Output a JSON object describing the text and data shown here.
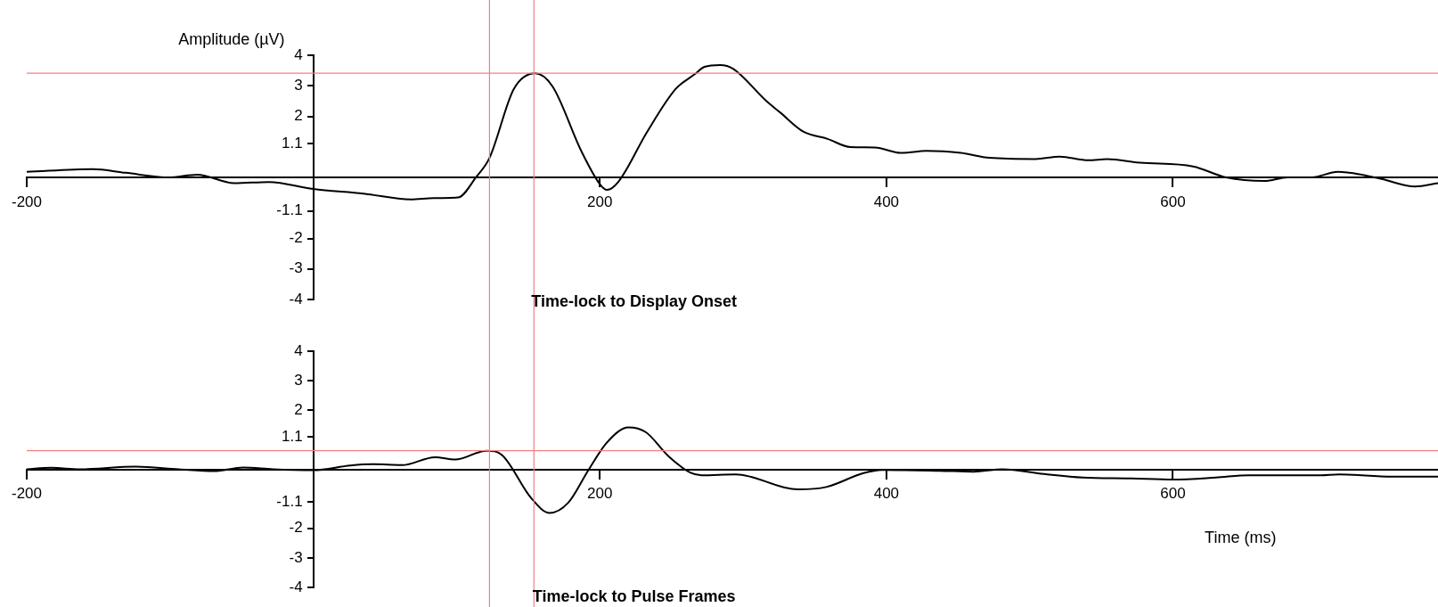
{
  "chart_data": [
    {
      "type": "line",
      "title": "Time-lock to Display Onset",
      "ylabel": "Amplitude (µV)",
      "x": [
        -200,
        -154,
        -131,
        -101,
        -81,
        -55,
        -31,
        0,
        35,
        68,
        84,
        101,
        114,
        123,
        140,
        155,
        167,
        187,
        200,
        205,
        213,
        233,
        253,
        266,
        273,
        284,
        293,
        316,
        326,
        342,
        359,
        375,
        392,
        410,
        428,
        452,
        472,
        504,
        521,
        541,
        554,
        577,
        614,
        637,
        664,
        680,
        697,
        715,
        743,
        769,
        785
      ],
      "series": [
        {
          "color": "#000000",
          "values": [
            0.18,
            0.27,
            0.15,
            0,
            0.09,
            -0.19,
            -0.15,
            -0.38,
            -0.53,
            -0.72,
            -0.68,
            -0.66,
            0.03,
            0.64,
            2.9,
            3.41,
            2.98,
            0.87,
            -0.22,
            -0.41,
            -0.14,
            1.49,
            2.9,
            3.37,
            3.62,
            3.68,
            3.56,
            2.51,
            2.12,
            1.5,
            1.26,
            0.99,
            0.98,
            0.8,
            0.87,
            0.8,
            0.64,
            0.6,
            0.68,
            0.56,
            0.6,
            0.48,
            0.36,
            0,
            -0.12,
            0,
            0,
            0.18,
            -0.02,
            -0.3,
            -0.19
          ]
        }
      ],
      "xlim": [
        -200,
        785
      ],
      "ylim": [
        -4,
        4
      ],
      "xticks": [
        -200,
        200,
        400,
        600
      ],
      "yticks": [
        -4,
        -3,
        -2,
        -1.1,
        1.1,
        2,
        3,
        4
      ],
      "ref_lines": [
        {
          "axis": "x",
          "value": 123,
          "color": "#f08080"
        },
        {
          "axis": "x",
          "value": 154,
          "color": "#f08080"
        },
        {
          "axis": "y",
          "value": 3.41,
          "color": "#f08080"
        }
      ]
    },
    {
      "type": "line",
      "title": "Time-lock to Pulse Frames",
      "xlabel": "Time (ms)",
      "x": [
        -200,
        -183,
        -163,
        -124,
        -94,
        -69,
        -49,
        -28,
        0,
        26,
        42,
        62,
        85,
        99,
        121,
        132,
        152,
        165,
        178,
        192,
        205,
        220,
        232,
        248,
        263,
        271,
        295,
        338,
        358,
        384,
        397,
        437,
        461,
        481,
        510,
        537,
        570,
        600,
        630,
        653,
        703,
        716,
        753,
        785
      ],
      "series": [
        {
          "color": "#000000",
          "values": [
            0,
            0.05,
            0,
            0.09,
            0,
            -0.06,
            0.06,
            0,
            -0.03,
            0.13,
            0.17,
            0.14,
            0.41,
            0.33,
            0.63,
            0.47,
            -0.97,
            -1.48,
            -1.13,
            -0.03,
            0.91,
            1.42,
            1.26,
            0.44,
            -0.11,
            -0.2,
            -0.17,
            -0.68,
            -0.6,
            -0.13,
            -0.02,
            -0.05,
            -0.08,
            0,
            -0.16,
            -0.28,
            -0.31,
            -0.35,
            -0.28,
            -0.2,
            -0.2,
            -0.17,
            -0.25,
            -0.25
          ]
        }
      ],
      "xlim": [
        -200,
        785
      ],
      "ylim": [
        -4,
        4
      ],
      "xticks": [
        -200,
        200,
        400,
        600
      ],
      "yticks": [
        -4,
        -3,
        -2,
        -1.1,
        1.1,
        2,
        3,
        4
      ],
      "ref_lines": [
        {
          "axis": "x",
          "value": 123,
          "color": "#f08080"
        },
        {
          "axis": "x",
          "value": 154,
          "color": "#f08080"
        },
        {
          "axis": "y",
          "value": 0.63,
          "color": "#f08080"
        }
      ]
    }
  ]
}
